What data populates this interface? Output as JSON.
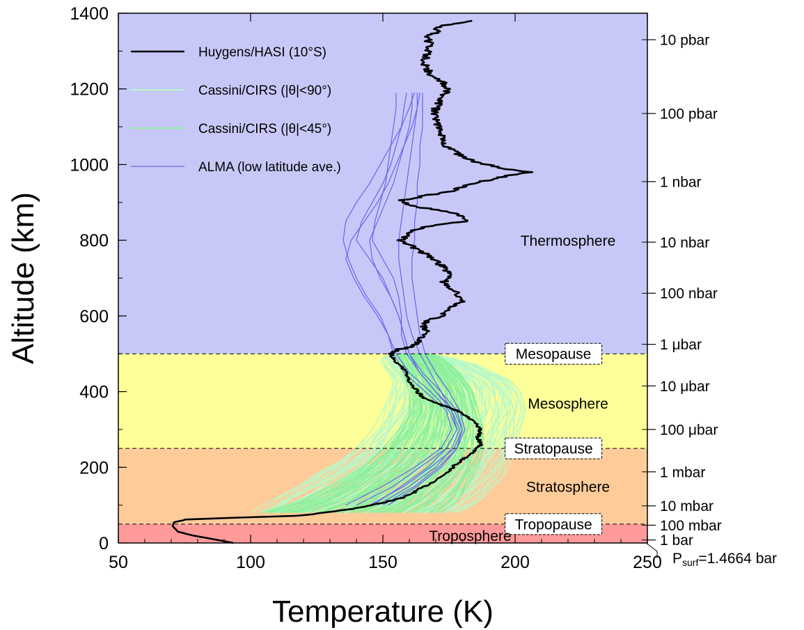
{
  "chart_data": {
    "type": "line",
    "xlabel": "Temperature (K)",
    "ylabel": "Altitude (km)",
    "xlim": [
      50,
      250
    ],
    "ylim": [
      0,
      1400
    ],
    "x_ticks": [
      50,
      100,
      150,
      200,
      250
    ],
    "y_ticks": [
      0,
      200,
      400,
      600,
      800,
      1000,
      1200,
      1400
    ],
    "grid": false,
    "legend_position": "top-left",
    "regions": [
      {
        "name": "Troposphere",
        "ymin": 0,
        "ymax": 50,
        "color": "#ff9a9a"
      },
      {
        "name": "Stratosphere",
        "ymin": 50,
        "ymax": 250,
        "color": "#ffcc99"
      },
      {
        "name": "Mesosphere",
        "ymin": 250,
        "ymax": 500,
        "color": "#ffff99"
      },
      {
        "name": "Thermosphere",
        "ymin": 500,
        "ymax": 1400,
        "color": "#c8c8f8"
      }
    ],
    "region_labels": [
      {
        "text": "Thermosphere",
        "x": 220,
        "y": 800
      },
      {
        "text": "Mesosphere",
        "x": 220,
        "y": 370
      },
      {
        "text": "Stratosphere",
        "x": 220,
        "y": 150
      },
      {
        "text": "Troposphere",
        "x": 183,
        "y": 20
      }
    ],
    "boundaries": [
      {
        "name": "Mesopause",
        "y": 500
      },
      {
        "name": "Stratopause",
        "y": 250
      },
      {
        "name": "Tropopause",
        "y": 50
      }
    ],
    "pressure_axis": [
      {
        "label": "10 pbar",
        "y": 1330
      },
      {
        "label": "100 pbar",
        "y": 1135
      },
      {
        "label": "1 nbar",
        "y": 955
      },
      {
        "label": "10 nbar",
        "y": 795
      },
      {
        "label": "100 nbar",
        "y": 660
      },
      {
        "label": "1 μbar",
        "y": 525
      },
      {
        "label": "10 μbar",
        "y": 415
      },
      {
        "label": "100 μbar",
        "y": 300
      },
      {
        "label": "1 mbar",
        "y": 188
      },
      {
        "label": "10 mbar",
        "y": 98
      },
      {
        "label": "100 mbar",
        "y": 47
      },
      {
        "label": "1 bar",
        "y": 8
      }
    ],
    "surface_label": {
      "prefix": "P",
      "subscript": "surf",
      "suffix": "=1.4664 bar"
    },
    "series": [
      {
        "name": "Huygens/HASI (10°S)",
        "color": "#000000",
        "x": [
          93.5,
          86,
          78,
          72.5,
          70.5,
          71,
          76,
          92,
          118,
          128,
          138,
          146,
          152,
          158,
          162,
          166,
          172,
          178,
          184,
          187,
          186,
          187,
          183,
          178,
          172,
          166,
          163,
          161,
          159,
          158,
          155,
          153,
          155,
          162,
          164,
          166,
          165,
          172,
          175,
          180,
          178,
          175,
          173,
          176,
          174,
          171,
          167,
          162,
          159,
          157,
          158,
          163,
          170,
          176,
          182,
          180,
          177,
          172,
          166,
          162,
          160,
          158,
          157,
          160,
          168,
          176,
          180,
          184,
          190,
          197,
          205,
          200,
          192,
          184,
          178,
          174,
          172,
          170,
          170,
          173,
          175,
          172,
          168,
          166,
          166,
          167,
          168,
          166,
          172,
          170,
          175,
          183
        ],
        "y": [
          0,
          10,
          20,
          30,
          45,
          55,
          62,
          66,
          72,
          80,
          90,
          100,
          110,
          120,
          135,
          150,
          175,
          210,
          240,
          260,
          280,
          300,
          330,
          350,
          365,
          380,
          400,
          420,
          440,
          460,
          480,
          500,
          510,
          520,
          540,
          560,
          580,
          600,
          620,
          640,
          660,
          680,
          690,
          700,
          720,
          740,
          760,
          780,
          790,
          800,
          810,
          830,
          840,
          845,
          850,
          860,
          870,
          880,
          885,
          890,
          895,
          900,
          905,
          910,
          920,
          930,
          940,
          950,
          960,
          970,
          980,
          985,
          995,
          1010,
          1030,
          1050,
          1080,
          1110,
          1150,
          1180,
          1200,
          1220,
          1240,
          1260,
          1280,
          1300,
          1320,
          1340,
          1350,
          1360,
          1370,
          1380
        ]
      },
      {
        "name": "Cassini/CIRS (|θ|<90°)",
        "color": "#b8f8c8",
        "band_min": [
          100,
          105,
          110,
          118,
          124,
          132,
          140,
          146,
          150,
          153,
          154,
          152,
          150,
          149,
          150,
          152,
          154,
          156
        ],
        "band_max": [
          178,
          184,
          188,
          192,
          196,
          198,
          200,
          202,
          204,
          202,
          198,
          192,
          186,
          180,
          176,
          172,
          168,
          165
        ],
        "y": [
          80,
          100,
          120,
          150,
          180,
          210,
          250,
          300,
          350,
          400,
          430,
          450,
          470,
          480,
          490,
          495,
          500,
          505
        ]
      },
      {
        "name": "Cassini/CIRS (|θ|<45°)",
        "color": "#8cf09a",
        "band_min": [
          104,
          118,
          130,
          142,
          150,
          156,
          160,
          160,
          158,
          156,
          155,
          155
        ],
        "band_max": [
          172,
          178,
          182,
          186,
          188,
          188,
          186,
          184,
          180,
          176,
          172,
          168
        ],
        "y": [
          80,
          110,
          150,
          200,
          250,
          300,
          350,
          400,
          440,
          470,
          490,
          500
        ]
      },
      {
        "name": "ALMA (low latitude ave.)",
        "color": "#6464ee",
        "y": [
          100,
          150,
          200,
          250,
          300,
          350,
          400,
          450,
          500,
          550,
          600,
          650,
          700,
          750,
          800,
          850,
          900,
          950,
          1000,
          1050,
          1100,
          1150,
          1190
        ],
        "profiles": [
          [
            136,
            150,
            162,
            172,
            176,
            174,
            166,
            158,
            154,
            152,
            149,
            144,
            140,
            137,
            135,
            136,
            140,
            145,
            149,
            153,
            157,
            160,
            162
          ],
          [
            140,
            154,
            164,
            174,
            178,
            175,
            168,
            160,
            155,
            152,
            148,
            143,
            139,
            136,
            138,
            143,
            148,
            152,
            155,
            158,
            161,
            163,
            164
          ],
          [
            145,
            158,
            168,
            177,
            180,
            178,
            172,
            165,
            160,
            158,
            156,
            153,
            150,
            145,
            140,
            142,
            146,
            150,
            153,
            155,
            157,
            158,
            159
          ],
          [
            150,
            162,
            171,
            178,
            180,
            177,
            170,
            164,
            159,
            157,
            157,
            156,
            154,
            150,
            146,
            147,
            149,
            151,
            152,
            153,
            154,
            155,
            155
          ],
          [
            148,
            160,
            170,
            176,
            179,
            176,
            172,
            168,
            164,
            161,
            159,
            158,
            157,
            156,
            156,
            157,
            158,
            159,
            160,
            161,
            162,
            163,
            163
          ],
          [
            152,
            163,
            172,
            178,
            181,
            179,
            175,
            170,
            166,
            164,
            163,
            162,
            161,
            161,
            162,
            162,
            163,
            163,
            164,
            164,
            165,
            165,
            165
          ],
          [
            146,
            157,
            167,
            174,
            178,
            176,
            170,
            164,
            160,
            158,
            156,
            153,
            149,
            146,
            145,
            148,
            151,
            154,
            156,
            158,
            160,
            161,
            161
          ]
        ]
      }
    ]
  }
}
